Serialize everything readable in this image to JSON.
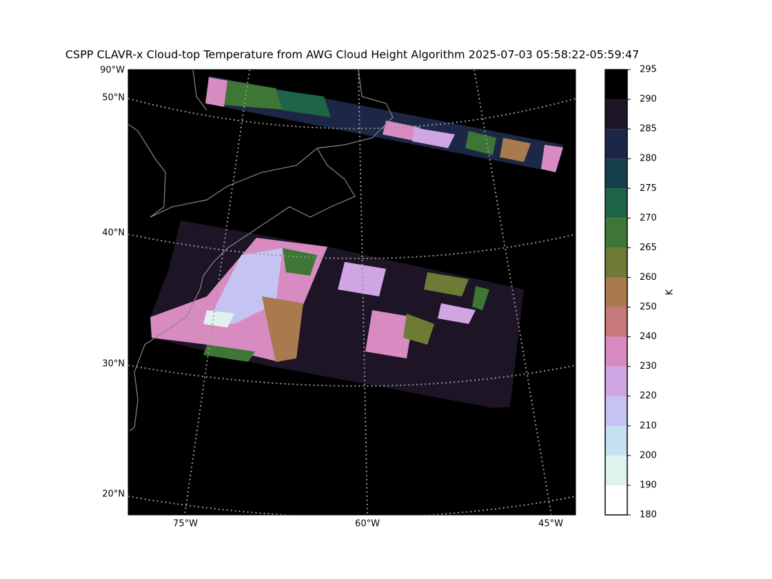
{
  "title": "CSPP CLAVR-x Cloud-top Temperature from AWG Cloud Height Algorithm 2025-07-03 05:58:22-05:59:47",
  "map": {
    "lat_labels": [
      "90°W",
      "50°N",
      "40°N",
      "30°N",
      "20°N"
    ],
    "lon_labels": [
      "75°W",
      "60°W",
      "45°W"
    ]
  },
  "colorbar": {
    "label": "K",
    "ticks": [
      180,
      190,
      200,
      210,
      220,
      230,
      240,
      250,
      260,
      265,
      270,
      275,
      280,
      285,
      290,
      295
    ],
    "colors": [
      "#ffffff",
      "#dff3ee",
      "#c6e0f0",
      "#c5c3f2",
      "#cfa5e3",
      "#d88bc0",
      "#c7787a",
      "#a87a4e",
      "#6e7b35",
      "#3d7635",
      "#1e6548",
      "#163f4c",
      "#1c2747",
      "#1d1426",
      "#000000"
    ]
  }
}
